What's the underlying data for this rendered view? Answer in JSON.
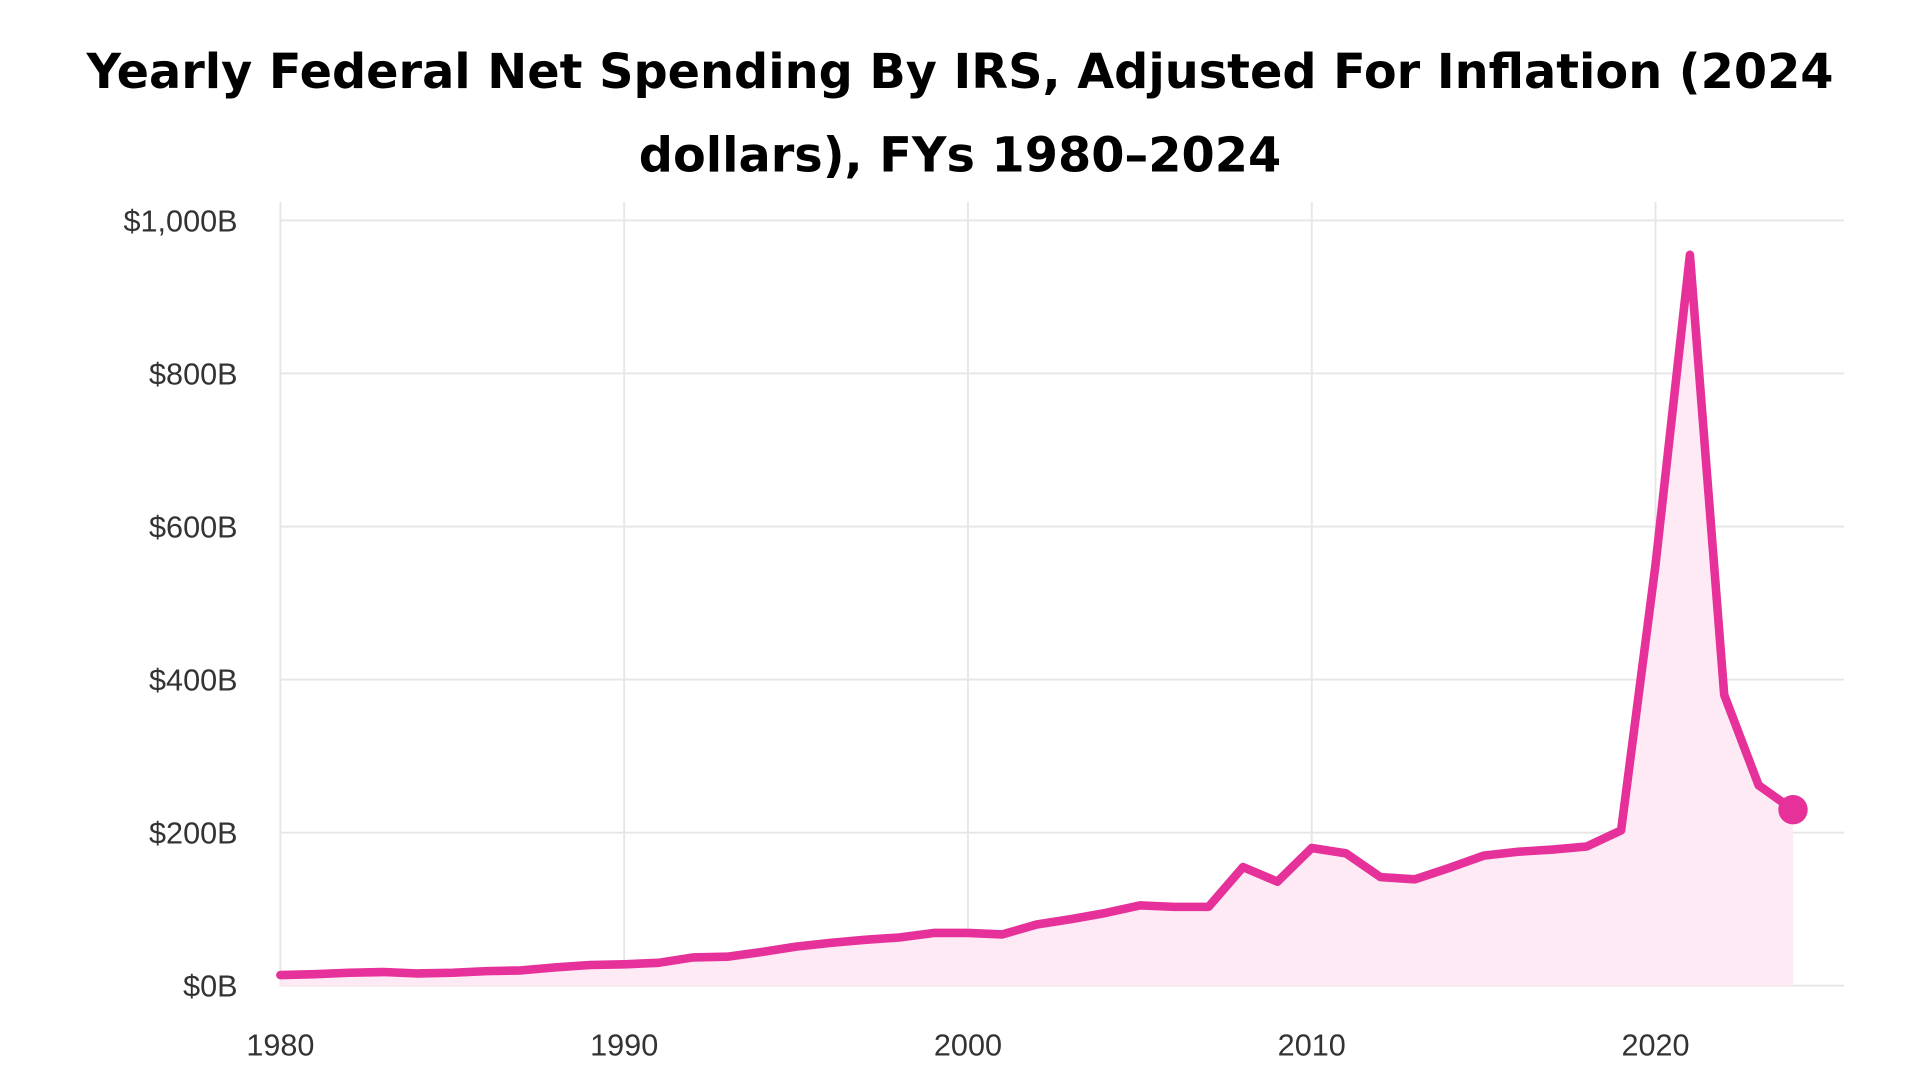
{
  "chart_data": {
    "type": "area",
    "title_lines": [
      "Yearly Federal Net Spending By IRS, Adjusted For Inflation (2024",
      "dollars), FYs 1980–2024"
    ],
    "xlabel": "",
    "ylabel": "",
    "xlim": [
      1980,
      2025.5
    ],
    "ylim": [
      0,
      1000
    ],
    "x_ticks": [
      1980,
      1990,
      2000,
      2010,
      2020
    ],
    "x_tick_labels": [
      "1980",
      "1990",
      "2000",
      "2010",
      "2020"
    ],
    "y_ticks": [
      0,
      200,
      400,
      600,
      800,
      1000
    ],
    "y_tick_labels": [
      "$0B",
      "$200B",
      "$400B",
      "$600B",
      "$800B",
      "$1,000B"
    ],
    "grid": true,
    "line_color": "#e6309a",
    "fill_color": "#fdeaf5",
    "highlight_last_point": true,
    "x": [
      1980,
      1981,
      1982,
      1983,
      1984,
      1985,
      1986,
      1987,
      1988,
      1989,
      1990,
      1991,
      1992,
      1993,
      1994,
      1995,
      1996,
      1997,
      1998,
      1999,
      2000,
      2001,
      2002,
      2003,
      2004,
      2005,
      2006,
      2007,
      2008,
      2009,
      2010,
      2011,
      2012,
      2013,
      2014,
      2015,
      2016,
      2017,
      2018,
      2019,
      2020,
      2021,
      2022,
      2023,
      2024
    ],
    "values": [
      14,
      15,
      17,
      18,
      16,
      17,
      19,
      20,
      24,
      27,
      28,
      30,
      37,
      38,
      44,
      51,
      56,
      60,
      63,
      69,
      69,
      67,
      80,
      87,
      95,
      105,
      103,
      103,
      155,
      136,
      180,
      173,
      142,
      139,
      154,
      170,
      175,
      178,
      182,
      203,
      550,
      955,
      380,
      262,
      230
    ],
    "unit": "billions of 2024 dollars"
  }
}
